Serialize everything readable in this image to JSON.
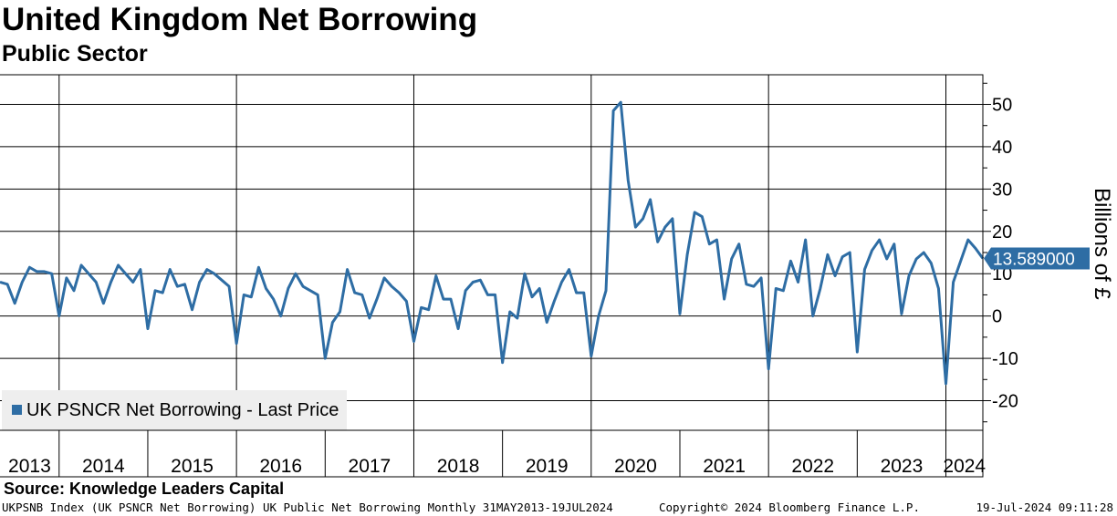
{
  "header": {
    "title": "United Kingdom Net Borrowing",
    "subtitle": "Public Sector"
  },
  "footer": {
    "source": "Source: Knowledge Leaders Capital",
    "description": "UKPSNB Index (UK PSNCR Net Borrowing) UK Public Net Borrowing  Monthly 31MAY2013-19JUL2024",
    "copyright": "Copyright© 2024 Bloomberg Finance L.P.",
    "timestamp": "19-Jul-2024 09:11:28"
  },
  "colors": {
    "series": "#2e6da4",
    "grid": "#000000",
    "background": "#ffffff",
    "legend_bg": "#eeeeee"
  },
  "chart_data": {
    "type": "line",
    "ylabel": "Billions of £",
    "ylim": [
      -27,
      57
    ],
    "yticks": [
      -20,
      -10,
      0,
      10,
      20,
      30,
      40,
      50
    ],
    "xlim": [
      "2013-05",
      "2024-06"
    ],
    "year_labels": [
      "2013",
      "2014",
      "2015",
      "2016",
      "2017",
      "2018",
      "2019",
      "2020",
      "2021",
      "2022",
      "2023",
      "2024"
    ],
    "grid": true,
    "legend_position": "bottom-left",
    "last_value_label": "13.589000",
    "series": [
      {
        "name": "UK PSNCR Net Borrowing - Last Price",
        "x_start": "2013-05",
        "x_step": "1 month",
        "values": [
          8,
          7.5,
          3,
          8,
          11.5,
          10.5,
          10.5,
          10,
          0,
          9,
          6,
          12,
          10,
          8,
          3,
          8,
          12,
          10,
          8,
          11,
          -3,
          6,
          5.5,
          11,
          7,
          7.5,
          1.5,
          8,
          11,
          10,
          8.5,
          7,
          -6.5,
          5,
          4.5,
          11.5,
          6.5,
          4,
          0,
          6.5,
          10,
          7,
          6,
          5,
          -10,
          -1.5,
          1,
          11,
          5.5,
          5,
          -0.5,
          4,
          9,
          7,
          5.5,
          3.5,
          -6,
          2,
          1.5,
          9.5,
          4,
          4,
          -3,
          6,
          8,
          8.5,
          5,
          5,
          -11,
          1,
          -0.5,
          10,
          4.5,
          6.5,
          -1.5,
          3.5,
          8,
          11,
          5.5,
          5.5,
          -9.5,
          0,
          6,
          48.5,
          50.5,
          32,
          21,
          23,
          27.5,
          17.5,
          21,
          23,
          0.5,
          14.5,
          24.5,
          23.5,
          17,
          18,
          4,
          13.5,
          17,
          7.5,
          7,
          9,
          -12.5,
          6.5,
          6,
          13,
          8,
          18,
          0,
          6.5,
          14.5,
          9.5,
          14,
          15,
          -8.5,
          11,
          15.5,
          18,
          13.5,
          17,
          0.5,
          9.5,
          13.5,
          15,
          12.5,
          6.5,
          -16,
          8,
          13,
          18,
          16,
          13.589
        ]
      }
    ]
  }
}
